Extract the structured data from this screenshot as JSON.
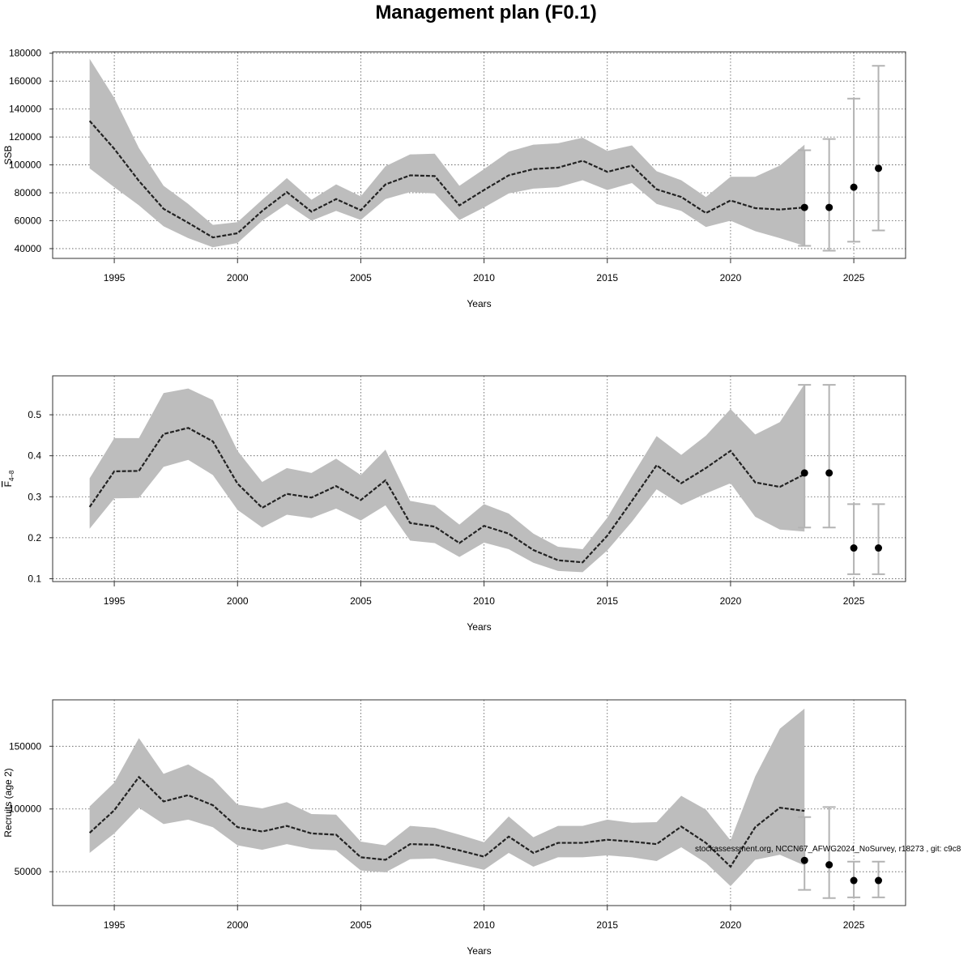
{
  "title": "Management plan (F0.1)",
  "footnote": "stockassessment.org, NCCN67_AFWG2024_NoSurvey, r18273 , git: c9c8",
  "colors": {
    "band": "#bdbdbd",
    "line": "#222222",
    "grid": "#555555",
    "errorbar": "#b3b3b3",
    "point": "#000000"
  },
  "chart_data": [
    {
      "type": "line",
      "ylabel": "SSB",
      "xlabel": "Years",
      "xlim": [
        1992.5,
        2027.1
      ],
      "ylim": [
        33000,
        181000
      ],
      "xticks": [
        1995,
        2000,
        2005,
        2010,
        2015,
        2020,
        2025
      ],
      "yticks": [
        40000,
        60000,
        80000,
        100000,
        120000,
        140000,
        160000,
        180000
      ],
      "ytick_labels": [
        "40000",
        "60000",
        "80000",
        "100000",
        "120000",
        "140000",
        "160000",
        "180000"
      ],
      "grid": true,
      "years": [
        1994,
        1995,
        1996,
        1997,
        1998,
        1999,
        2000,
        2001,
        2002,
        2003,
        2004,
        2005,
        2006,
        2007,
        2008,
        2009,
        2010,
        2011,
        2012,
        2013,
        2014,
        2015,
        2016,
        2017,
        2018,
        2019,
        2020,
        2021,
        2022,
        2023
      ],
      "estimate": [
        131500,
        111500,
        88500,
        68500,
        58500,
        48000,
        51000,
        67000,
        80500,
        66500,
        75500,
        67500,
        86000,
        92500,
        92000,
        71000,
        82000,
        92500,
        97000,
        98000,
        103000,
        95000,
        99500,
        82500,
        77000,
        65500,
        74500,
        69000,
        68000,
        69500
      ],
      "lower": [
        97500,
        84000,
        71000,
        56000,
        47500,
        41000,
        44000,
        60000,
        72000,
        60000,
        67000,
        60500,
        75500,
        80500,
        79500,
        60500,
        69500,
        79500,
        83000,
        84000,
        89000,
        82000,
        87000,
        72000,
        67000,
        55500,
        60000,
        52500,
        47500,
        42000
      ],
      "upper": [
        176000,
        148000,
        112000,
        85000,
        72000,
        57000,
        59000,
        75000,
        90500,
        75000,
        86000,
        77500,
        99000,
        107500,
        108000,
        85000,
        97000,
        109500,
        114500,
        115500,
        119500,
        110000,
        114000,
        95500,
        89000,
        77000,
        91500,
        91500,
        99500,
        114500
      ],
      "forecast": {
        "years": [
          2023,
          2024,
          2025,
          2026
        ],
        "median": [
          69500,
          69500,
          84000,
          97500
        ],
        "lower": [
          42000,
          38500,
          45000,
          53000
        ],
        "upper": [
          110500,
          118500,
          147500,
          171000
        ]
      }
    },
    {
      "type": "line",
      "ylabel": "F4-8",
      "xlabel": "Years",
      "xlim": [
        1992.5,
        2027.1
      ],
      "ylim": [
        0.093,
        0.595
      ],
      "xticks": [
        1995,
        2000,
        2005,
        2010,
        2015,
        2020,
        2025
      ],
      "yticks": [
        0.1,
        0.2,
        0.3,
        0.4,
        0.5
      ],
      "ytick_labels": [
        "0.1",
        "0.2",
        "0.3",
        "0.4",
        "0.5"
      ],
      "grid": true,
      "years": [
        1994,
        1995,
        1996,
        1997,
        1998,
        1999,
        2000,
        2001,
        2002,
        2003,
        2004,
        2005,
        2006,
        2007,
        2008,
        2009,
        2010,
        2011,
        2012,
        2013,
        2014,
        2015,
        2016,
        2017,
        2018,
        2019,
        2020,
        2021,
        2022,
        2023
      ],
      "estimate": [
        0.275,
        0.362,
        0.363,
        0.453,
        0.468,
        0.435,
        0.332,
        0.273,
        0.307,
        0.298,
        0.326,
        0.292,
        0.34,
        0.236,
        0.227,
        0.187,
        0.229,
        0.21,
        0.17,
        0.145,
        0.14,
        0.205,
        0.29,
        0.377,
        0.333,
        0.37,
        0.412,
        0.335,
        0.324,
        0.355
      ],
      "lower": [
        0.222,
        0.296,
        0.297,
        0.373,
        0.39,
        0.353,
        0.268,
        0.225,
        0.256,
        0.248,
        0.271,
        0.242,
        0.279,
        0.193,
        0.187,
        0.153,
        0.188,
        0.172,
        0.139,
        0.119,
        0.116,
        0.169,
        0.239,
        0.318,
        0.28,
        0.308,
        0.333,
        0.251,
        0.22,
        0.215
      ],
      "upper": [
        0.345,
        0.443,
        0.443,
        0.553,
        0.564,
        0.536,
        0.412,
        0.336,
        0.37,
        0.358,
        0.393,
        0.353,
        0.415,
        0.29,
        0.279,
        0.232,
        0.282,
        0.259,
        0.21,
        0.178,
        0.172,
        0.249,
        0.35,
        0.448,
        0.402,
        0.449,
        0.514,
        0.452,
        0.482,
        0.575
      ],
      "forecast": {
        "years": [
          2023,
          2024,
          2025,
          2026
        ],
        "median": [
          0.358,
          0.358,
          0.175,
          0.175
        ],
        "lower": [
          0.225,
          0.225,
          0.111,
          0.111
        ],
        "upper": [
          0.573,
          0.573,
          0.282,
          0.282
        ]
      }
    },
    {
      "type": "line",
      "ylabel": "Recruits (age 2)",
      "xlabel": "Years",
      "xlim": [
        1992.5,
        2027.1
      ],
      "ylim": [
        23000,
        187000
      ],
      "xticks": [
        1995,
        2000,
        2005,
        2010,
        2015,
        2020,
        2025
      ],
      "yticks": [
        50000,
        100000,
        150000
      ],
      "ytick_labels": [
        "50000",
        "100000",
        "150000"
      ],
      "grid": true,
      "years": [
        1994,
        1995,
        1996,
        1997,
        1998,
        1999,
        2000,
        2001,
        2002,
        2003,
        2004,
        2005,
        2006,
        2007,
        2008,
        2009,
        2010,
        2011,
        2012,
        2013,
        2014,
        2015,
        2016,
        2017,
        2018,
        2019,
        2020,
        2021,
        2022,
        2023
      ],
      "estimate": [
        81000,
        99000,
        125500,
        106000,
        111000,
        103000,
        85500,
        82000,
        86500,
        80500,
        79500,
        61500,
        59500,
        72000,
        71500,
        67000,
        62000,
        78000,
        65000,
        73000,
        73000,
        75500,
        74000,
        72000,
        86000,
        73000,
        54000,
        85500,
        101000,
        98500
      ],
      "lower": [
        65000,
        80500,
        101000,
        88000,
        91500,
        85500,
        71000,
        67500,
        72000,
        68000,
        67000,
        51000,
        49500,
        60000,
        60500,
        56000,
        51500,
        65000,
        54000,
        61500,
        61500,
        63000,
        61500,
        58500,
        69500,
        57000,
        38500,
        59500,
        63500,
        55000
      ],
      "upper": [
        102000,
        121000,
        156500,
        128000,
        135500,
        124000,
        103500,
        100500,
        105500,
        96000,
        95500,
        74000,
        71000,
        86500,
        85000,
        79500,
        73500,
        94000,
        77500,
        86500,
        86500,
        91500,
        89000,
        89500,
        110500,
        99500,
        75000,
        126000,
        164000,
        180000
      ],
      "forecast": {
        "years": [
          2023,
          2024,
          2025,
          2026
        ],
        "median": [
          59000,
          55500,
          43000,
          43000
        ],
        "lower": [
          35500,
          29000,
          29500,
          29500
        ],
        "upper": [
          93500,
          101500,
          58000,
          58000
        ]
      }
    }
  ]
}
